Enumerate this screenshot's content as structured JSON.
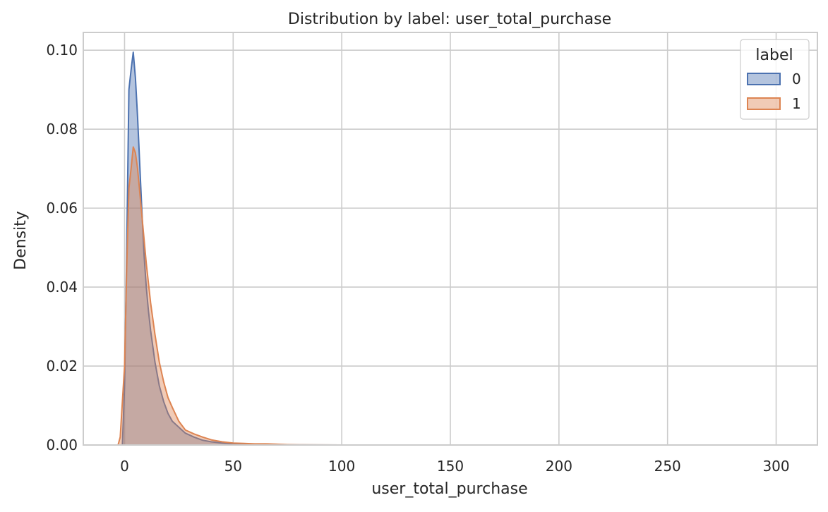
{
  "chart_data": {
    "type": "area",
    "title": "Distribution by label: user_total_purchase",
    "xlabel": "user_total_purchase",
    "ylabel": "Density",
    "xlim": [
      -19,
      319
    ],
    "ylim": [
      0,
      0.1045
    ],
    "xticks": [
      0,
      50,
      100,
      150,
      200,
      250,
      300
    ],
    "yticks": [
      0.0,
      0.02,
      0.04,
      0.06,
      0.08,
      0.1
    ],
    "ytick_labels": [
      "0.00",
      "0.02",
      "0.04",
      "0.06",
      "0.08",
      "0.10"
    ],
    "grid": true,
    "legend": {
      "title": "label",
      "placement": "top-right"
    },
    "series": [
      {
        "name": "0",
        "color": "#4c72b0",
        "x": [
          -1,
          0,
          1,
          2,
          3,
          4,
          5,
          6,
          7,
          8,
          9,
          10,
          11,
          12,
          14,
          16,
          18,
          20,
          22,
          25,
          28,
          32,
          36,
          40,
          45,
          50,
          55,
          60,
          70,
          80,
          100
        ],
        "y": [
          0.0,
          0.015,
          0.05,
          0.09,
          0.095,
          0.0995,
          0.093,
          0.083,
          0.071,
          0.059,
          0.048,
          0.04,
          0.034,
          0.029,
          0.021,
          0.015,
          0.011,
          0.008,
          0.006,
          0.0045,
          0.003,
          0.002,
          0.0012,
          0.0008,
          0.0005,
          0.0003,
          0.0002,
          0.0001,
          5e-05,
          2e-05,
          0.0
        ]
      },
      {
        "name": "1",
        "color": "#dd8452",
        "x": [
          -3,
          -2,
          0,
          1,
          2,
          3,
          4,
          5,
          6,
          7,
          8,
          9,
          10,
          11,
          12,
          14,
          16,
          18,
          20,
          22,
          25,
          28,
          32,
          36,
          40,
          45,
          50,
          55,
          60,
          65,
          70,
          75,
          80,
          90,
          100
        ],
        "y": [
          0.0,
          0.002,
          0.02,
          0.045,
          0.065,
          0.07,
          0.0755,
          0.074,
          0.07,
          0.064,
          0.058,
          0.052,
          0.046,
          0.041,
          0.036,
          0.028,
          0.021,
          0.016,
          0.012,
          0.0095,
          0.006,
          0.0038,
          0.0028,
          0.002,
          0.0013,
          0.0008,
          0.0005,
          0.0004,
          0.0003,
          0.0003,
          0.0002,
          0.0001,
          5e-05,
          2e-05,
          0.0
        ]
      }
    ]
  }
}
